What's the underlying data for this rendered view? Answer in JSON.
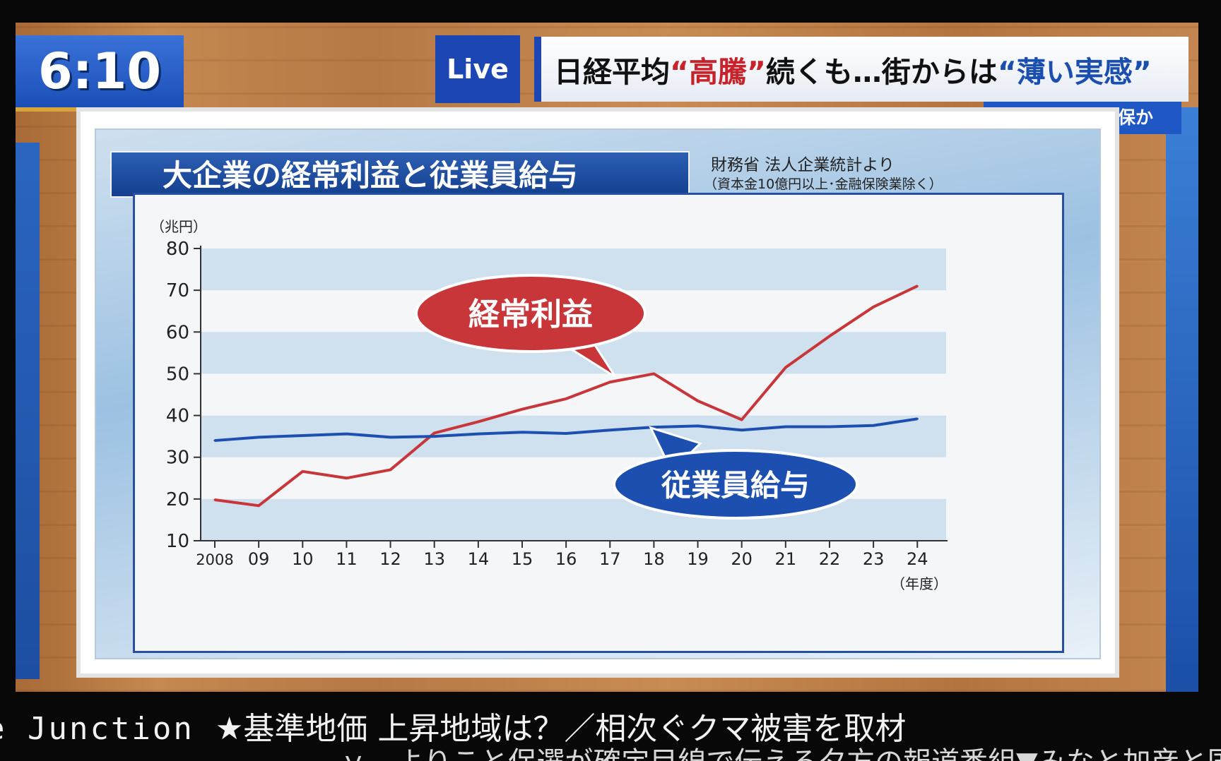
{
  "clock": "6:10",
  "header": {
    "live_label": "Live",
    "headline_part1": "日経平均",
    "headline_quote1": "“高騰”",
    "headline_part2": "続くも…街からは",
    "headline_quote2": "“薄い実感”",
    "sub_tag": "企業は内部留保か"
  },
  "colors": {
    "red_series": "#c8363a",
    "blue_series": "#1c4fb0",
    "band_blue": "#cfe0ee"
  },
  "chart_data": {
    "type": "line",
    "title": "大企業の経常利益と従業員給与",
    "source_line1": "財務省 法人企業統計より",
    "source_line2": "（資本金10億円以上･金融保険業除く）",
    "ylabel": "（兆円）",
    "xlabel": "（年度）",
    "ylim": [
      10,
      80
    ],
    "yticks": [
      "80",
      "70",
      "60",
      "50",
      "40",
      "30",
      "20",
      "10"
    ],
    "categories": [
      "2008",
      "09",
      "10",
      "11",
      "12",
      "13",
      "14",
      "15",
      "16",
      "17",
      "18",
      "19",
      "20",
      "21",
      "22",
      "23",
      "24"
    ],
    "series": [
      {
        "name": "経常利益",
        "color": "#c8363a",
        "values": [
          19.8,
          18.4,
          26.6,
          25.0,
          27.0,
          35.8,
          38.5,
          41.5,
          44.0,
          48.0,
          50.0,
          43.5,
          39.0,
          51.5,
          59.0,
          66.0,
          71.0
        ]
      },
      {
        "name": "従業員給与",
        "color": "#1c4fb0",
        "values": [
          34.0,
          34.8,
          35.2,
          35.6,
          34.8,
          35.0,
          35.6,
          36.0,
          35.7,
          36.5,
          37.2,
          37.5,
          36.5,
          37.3,
          37.3,
          37.6,
          39.2
        ]
      }
    ],
    "grid": "horizontal bands"
  },
  "ticker": {
    "program": "e Junction",
    "news": "★基準地価 上昇地域は？／相次ぐクマ被害を取材",
    "second_line": "ｙ…よりこと保選が確定目線で伝える夕方の報道番組▼みなと加彦と国際"
  }
}
